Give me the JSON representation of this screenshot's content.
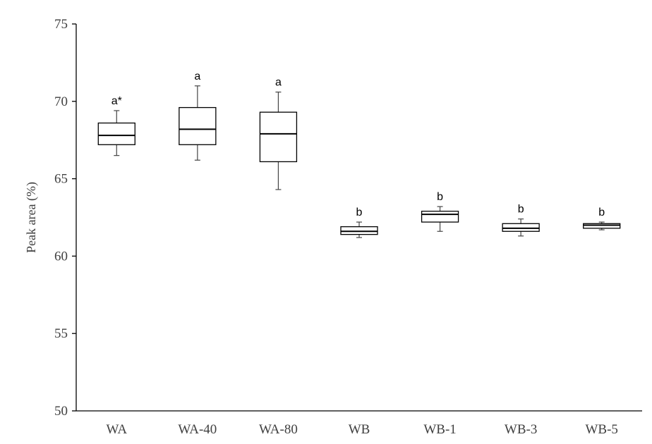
{
  "chart_data": {
    "type": "box",
    "title": "",
    "xlabel": "",
    "ylabel": "Peak area (%)",
    "ylim": [
      50,
      75
    ],
    "yticks": [
      50,
      55,
      60,
      65,
      70,
      75
    ],
    "grid": false,
    "categories": [
      "WA",
      "WA-40",
      "WA-80",
      "WB",
      "WB-1",
      "WB-3",
      "WB-5"
    ],
    "boxes": [
      {
        "category": "WA",
        "min": 66.5,
        "q1": 67.2,
        "median": 67.8,
        "q3": 68.6,
        "max": 69.4,
        "label": "a*"
      },
      {
        "category": "WA-40",
        "min": 66.2,
        "q1": 67.2,
        "median": 68.2,
        "q3": 69.6,
        "max": 71.0,
        "label": "a"
      },
      {
        "category": "WA-80",
        "min": 64.3,
        "q1": 66.1,
        "median": 67.9,
        "q3": 69.3,
        "max": 70.6,
        "label": "a"
      },
      {
        "category": "WB",
        "min": 61.2,
        "q1": 61.4,
        "median": 61.6,
        "q3": 61.9,
        "max": 62.2,
        "label": "b"
      },
      {
        "category": "WB-1",
        "min": 61.6,
        "q1": 62.2,
        "median": 62.7,
        "q3": 62.9,
        "max": 63.2,
        "label": "b"
      },
      {
        "category": "WB-3",
        "min": 61.3,
        "q1": 61.6,
        "median": 61.8,
        "q3": 62.1,
        "max": 62.4,
        "label": "b"
      },
      {
        "category": "WB-5",
        "min": 61.7,
        "q1": 61.8,
        "median": 62.0,
        "q3": 62.1,
        "max": 62.2,
        "label": "b"
      }
    ]
  }
}
